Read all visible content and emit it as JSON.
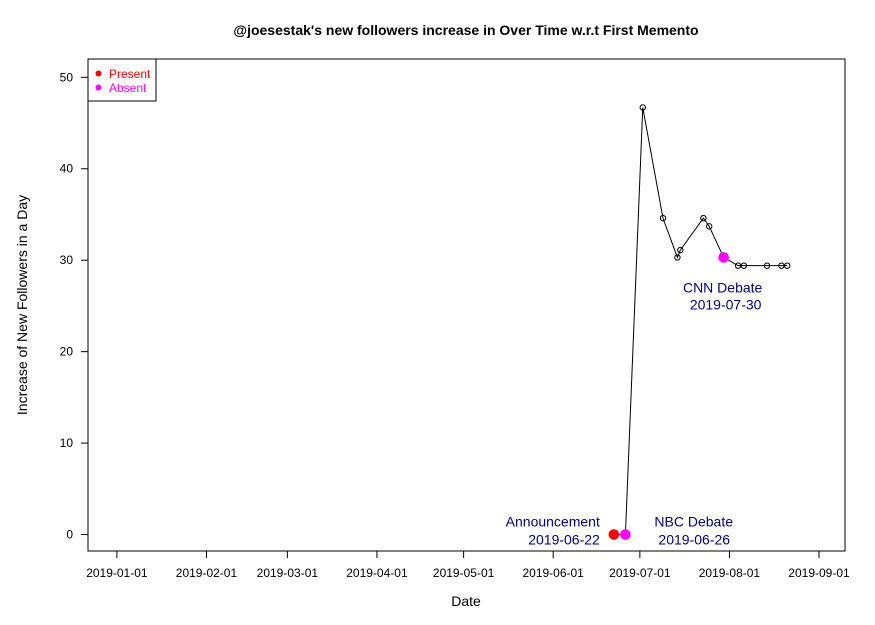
{
  "chart_data": {
    "type": "scatter",
    "title": "@joesestak's new followers increase in Over Time w.r.t First Memento",
    "xlabel": "Date",
    "ylabel": "Increase of New Followers in a Day",
    "xlim": [
      "2018-12-22",
      "2019-09-10"
    ],
    "ylim": [
      -1.8,
      52.0
    ],
    "x_ticks": [
      "2019-01-01",
      "2019-02-01",
      "2019-03-01",
      "2019-04-01",
      "2019-05-01",
      "2019-06-01",
      "2019-07-01",
      "2019-08-01",
      "2019-09-01"
    ],
    "y_ticks": [
      0,
      10,
      20,
      30,
      40,
      50
    ],
    "grid": false,
    "legend": {
      "position": "top-left",
      "entries": [
        {
          "label": "Present",
          "color": "#ff0000"
        },
        {
          "label": "Absent",
          "color": "#ff00ff"
        }
      ]
    },
    "series": [
      {
        "style": "line-with-open-circles",
        "color": "#000000",
        "points": [
          {
            "x": "2019-06-22",
            "y": 0
          },
          {
            "x": "2019-06-26",
            "y": 0
          },
          {
            "x": "2019-07-02",
            "y": 46.7
          },
          {
            "x": "2019-07-09",
            "y": 34.6
          },
          {
            "x": "2019-07-14",
            "y": 30.3
          },
          {
            "x": "2019-07-15",
            "y": 31.1
          },
          {
            "x": "2019-07-23",
            "y": 34.6
          },
          {
            "x": "2019-07-25",
            "y": 33.7
          },
          {
            "x": "2019-07-30",
            "y": 30.3
          },
          {
            "x": "2019-08-04",
            "y": 29.4
          },
          {
            "x": "2019-08-06",
            "y": 29.4
          },
          {
            "x": "2019-08-14",
            "y": 29.4
          },
          {
            "x": "2019-08-19",
            "y": 29.4
          },
          {
            "x": "2019-08-21",
            "y": 29.4
          }
        ]
      }
    ],
    "highlights": [
      {
        "x": "2019-06-22",
        "y": 0,
        "status": "Present",
        "color": "#ff0000"
      },
      {
        "x": "2019-06-26",
        "y": 0,
        "status": "Absent",
        "color": "#ff00ff"
      },
      {
        "x": "2019-07-30",
        "y": 30.3,
        "status": "Absent",
        "color": "#ff00ff"
      }
    ],
    "annotations": [
      {
        "x": "2019-06-22",
        "y": 0,
        "name": "Announcement",
        "date": "2019-06-22",
        "align": "left"
      },
      {
        "x": "2019-06-26",
        "y": 0,
        "name": "NBC Debate",
        "date": "2019-06-26",
        "align": "right"
      },
      {
        "x": "2019-07-30",
        "y": 30.3,
        "name": "CNN Debate",
        "date": "2019-07-30",
        "align": "below"
      }
    ],
    "annotation_color": "#000080"
  }
}
